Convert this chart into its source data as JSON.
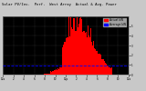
{
  "title": "Solar PV/Inv.  Perf.  West Array  Actual & Avg. Power",
  "title_fontsize": 3.2,
  "bg_color": "#c8c8c8",
  "plot_bg_color": "#000000",
  "bar_color": "#ff0000",
  "avg_line_color": "#0000ff",
  "grid_color": "#555555",
  "ylim": [
    0,
    6
  ],
  "num_bars": 300,
  "legend_actual_color": "#ff0000",
  "legend_avg_color": "#0000ff",
  "legend_actual_label": "Actual kW",
  "legend_avg_label": "Average kW",
  "avg_val": 0.9,
  "xtick_labels": [
    "12a",
    "",
    "",
    "2",
    "",
    "",
    "4",
    "",
    "",
    "6",
    "",
    "",
    "8",
    "",
    "",
    "10",
    "",
    "",
    "12p",
    "",
    "",
    "2",
    "",
    "",
    "4",
    "",
    "",
    "6",
    "",
    "",
    "8",
    "",
    "",
    "10",
    "",
    "",
    "12a"
  ],
  "ytick_labels": [
    "0",
    "1",
    "2",
    "3",
    "4",
    "5"
  ],
  "ytick_vals": [
    0,
    1,
    2,
    3,
    4,
    5
  ]
}
